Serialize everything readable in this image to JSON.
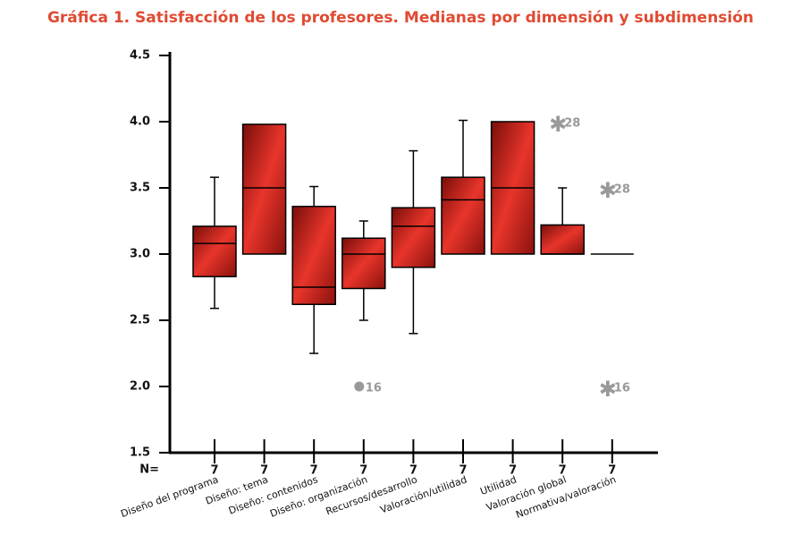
{
  "chart_data": {
    "type": "box",
    "title": "Gráfica 1. Satisfacción de los profesores. Medianas por dimensión y subdimensión",
    "categories": [
      "Diseño del programa",
      "Diseño: tema",
      "Diseño: contenidos",
      "Diseño: organización",
      "Recursos/desarrollo",
      "Valoración/utilidad",
      "Utilidad",
      "Valoración global",
      "Normativa/valoración"
    ],
    "boxes": [
      {
        "min": 2.59,
        "q1": 2.83,
        "median": 3.08,
        "q3": 3.21,
        "max": 3.58
      },
      {
        "min": 3.0,
        "q1": 3.0,
        "median": 3.5,
        "q3": 3.98,
        "max": 3.98
      },
      {
        "min": 2.25,
        "q1": 2.62,
        "median": 2.75,
        "q3": 3.36,
        "max": 3.51
      },
      {
        "min": 2.5,
        "q1": 2.74,
        "median": 3.0,
        "q3": 3.12,
        "max": 3.25
      },
      {
        "min": 2.4,
        "q1": 2.9,
        "median": 3.21,
        "q3": 3.35,
        "max": 3.78
      },
      {
        "min": 3.0,
        "q1": 3.0,
        "median": 3.41,
        "q3": 3.58,
        "max": 4.01
      },
      {
        "min": 3.0,
        "q1": 3.0,
        "median": 3.5,
        "q3": 4.0,
        "max": 4.0
      },
      {
        "min": 3.0,
        "q1": 3.0,
        "median": 3.0,
        "q3": 3.22,
        "max": 3.5
      },
      {
        "min": 3.0,
        "q1": 3.0,
        "median": 3.0,
        "q3": 3.0,
        "max": 3.0
      }
    ],
    "outliers": [
      {
        "category": "Diseño: organización",
        "value": 2.0,
        "label": "16",
        "marker": "circle"
      },
      {
        "category": "Valoración global",
        "value": 4.0,
        "label": "28",
        "marker": "asterisk"
      },
      {
        "category": "Normativa/valoración",
        "value": 3.5,
        "label": "28",
        "marker": "asterisk"
      },
      {
        "category": "Normativa/valoración",
        "value": 2.0,
        "label": "16",
        "marker": "asterisk"
      }
    ],
    "n_label": "N=",
    "n": [
      7,
      7,
      7,
      7,
      7,
      7,
      7,
      7,
      7
    ],
    "color": "#d92a22",
    "outlier_color": "#999999",
    "ylim": [
      1.5,
      4.5
    ],
    "yticks": [
      1.5,
      {
        "value": 2,
        "label": "2.0"
      },
      2.5,
      {
        "value": 3,
        "label": "3.0"
      },
      3.5,
      {
        "value": 4,
        "label": "4.0"
      },
      4.5
    ]
  }
}
